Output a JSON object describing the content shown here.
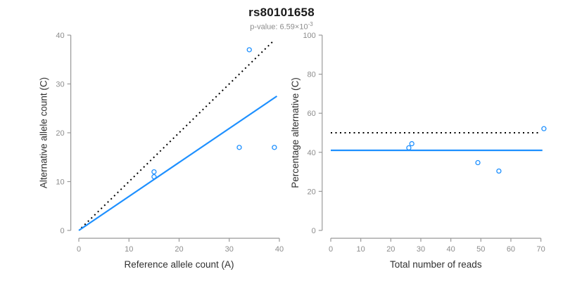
{
  "figure": {
    "title": "rs80101658",
    "subtitle_prefix": "p-value: 6.59×10",
    "subtitle_exponent": "-3"
  },
  "colors": {
    "accent_blue": "#1E90FF",
    "dotted_black": "#000000",
    "axis_gray": "#999999",
    "tick_gray": "#8c8c8c",
    "text_dark": "#303030"
  },
  "chart_data": [
    {
      "type": "scatter",
      "panel": "left",
      "xlabel": "Reference allele count (A)",
      "ylabel": "Alternative allele count (C)",
      "xlim": [
        0,
        40
      ],
      "ylim": [
        0,
        40
      ],
      "xticks": [
        0,
        10,
        20,
        30,
        40
      ],
      "yticks": [
        0,
        10,
        20,
        30,
        40
      ],
      "grid": false,
      "points": [
        [
          15,
          11
        ],
        [
          15,
          12
        ],
        [
          32,
          17
        ],
        [
          34,
          37
        ],
        [
          39,
          17
        ]
      ],
      "lines": [
        {
          "name": "expected-identity",
          "style": "dotted",
          "color": "#000000",
          "x1": 0.5,
          "y1": 0.5,
          "x2": 39,
          "y2": 39
        },
        {
          "name": "fitted-ratio",
          "style": "solid",
          "color": "#1E90FF",
          "x1": 0,
          "y1": 0,
          "x2": 39.5,
          "y2": 27.5
        }
      ]
    },
    {
      "type": "scatter",
      "panel": "right",
      "xlabel": "Total number of reads",
      "ylabel": "Percentage alternative (C)",
      "xlim": [
        0,
        71.5
      ],
      "ylim": [
        0,
        100
      ],
      "xticks": [
        0,
        10,
        20,
        30,
        40,
        50,
        60,
        70
      ],
      "yticks": [
        0,
        20,
        40,
        60,
        80,
        100
      ],
      "grid": false,
      "points": [
        [
          26,
          42.3
        ],
        [
          27,
          44.4
        ],
        [
          49,
          34.7
        ],
        [
          56,
          30.4
        ],
        [
          71,
          52.1
        ]
      ],
      "lines": [
        {
          "name": "expected-50pct",
          "style": "dotted",
          "color": "#000000",
          "x1": 0,
          "y1": 50,
          "x2": 69.5,
          "y2": 50
        },
        {
          "name": "observed-41pct",
          "style": "solid",
          "color": "#1E90FF",
          "x1": 0,
          "y1": 41,
          "x2": 70.5,
          "y2": 41
        }
      ]
    }
  ]
}
